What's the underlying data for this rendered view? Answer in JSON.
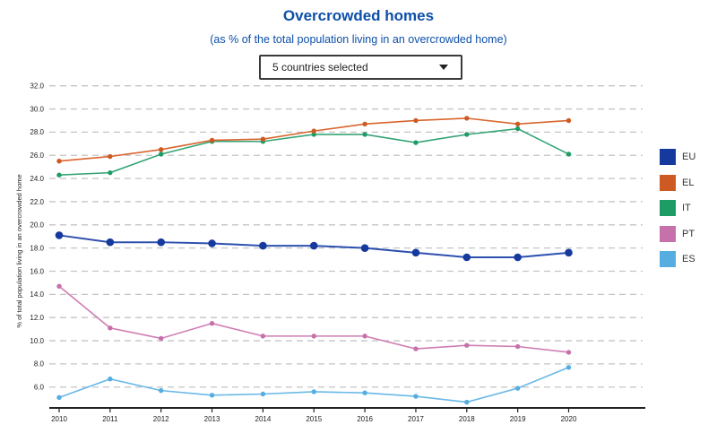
{
  "header": {
    "title": "Overcrowded homes",
    "subtitle": "(as % of the total population living in an overcrowded home)"
  },
  "controls": {
    "country_selector": {
      "value": "5 countries selected"
    }
  },
  "chart_data": {
    "type": "line",
    "title": "Overcrowded homes",
    "subtitle": "(as % of the total population living in an overcrowded home)",
    "xlabel": "",
    "ylabel": "% of total population living in an overcrowded home",
    "categories": [
      2010,
      2011,
      2012,
      2013,
      2014,
      2015,
      2016,
      2017,
      2018,
      2019,
      2020
    ],
    "series": [
      {
        "name": "EU",
        "marker_color": "#16399e",
        "line_color": "#2d50ae",
        "values": [
          19.1,
          18.5,
          18.5,
          18.4,
          18.2,
          18.2,
          18.0,
          17.6,
          17.2,
          17.2,
          17.6
        ]
      },
      {
        "name": "EL",
        "marker_color": "#cc5a22",
        "line_color": "#d9652e",
        "values": [
          25.5,
          25.9,
          26.5,
          27.3,
          27.4,
          28.1,
          28.7,
          29.0,
          29.2,
          28.7,
          29.0
        ]
      },
      {
        "name": "IT",
        "marker_color": "#1f9b66",
        "line_color": "#35a476",
        "values": [
          24.3,
          24.5,
          26.1,
          27.2,
          27.2,
          27.8,
          27.8,
          27.1,
          27.8,
          28.3,
          26.1
        ]
      },
      {
        "name": "PT",
        "marker_color": "#c671aa",
        "line_color": "#cf7cb3",
        "values": [
          14.7,
          11.1,
          10.2,
          11.5,
          10.4,
          10.4,
          10.4,
          9.3,
          9.6,
          9.5,
          9.0
        ]
      },
      {
        "name": "ES",
        "marker_color": "#55ade0",
        "line_color": "#69b8e7",
        "values": [
          5.1,
          6.7,
          5.7,
          5.3,
          5.4,
          5.6,
          5.5,
          5.2,
          4.7,
          5.9,
          7.7
        ]
      }
    ],
    "yticks": [
      32.0,
      30.0,
      28.0,
      26.0,
      24.0,
      22.0,
      20.0,
      18.0,
      16.0,
      14.0,
      12.0,
      10.0,
      8.0,
      6.0
    ],
    "ylim": [
      4.2,
      33.0
    ],
    "grid": "horizontal-dashed",
    "legend_position": "right",
    "legend_labels": [
      "EU",
      "EL",
      "IT",
      "PT",
      "ES"
    ]
  }
}
